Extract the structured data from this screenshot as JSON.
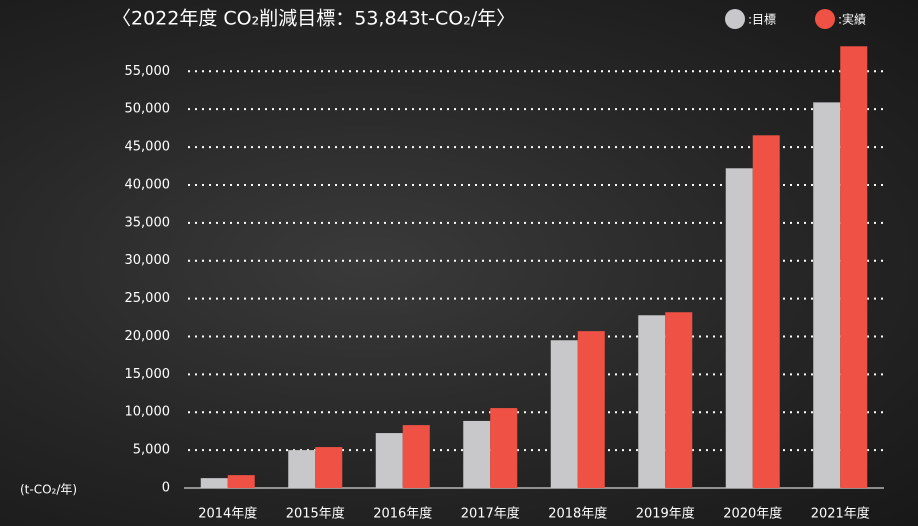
{
  "chart_data": {
    "type": "bar",
    "title": "〈2022年度 CO₂削減目標：53,843t-CO₂/年〉",
    "y_label": "(t-CO₂/年)",
    "categories": [
      "2014年度",
      "2015年度",
      "2016年度",
      "2017年度",
      "2018年度",
      "2019年度",
      "2020年度",
      "2021年度"
    ],
    "series": [
      {
        "name": ":目標",
        "color": "#c8c8ca",
        "values": [
          1300,
          5000,
          7250,
          8850,
          19500,
          22800,
          42200,
          50900
        ]
      },
      {
        "name": ":実績",
        "color": "#ef5245",
        "values": [
          1700,
          5400,
          8300,
          10550,
          20700,
          23200,
          46550,
          58300
        ]
      }
    ],
    "ylim": [
      0,
      59000
    ],
    "yticks": [
      0,
      {
        "value": 5000,
        "label": "5,000"
      },
      {
        "value": 10000,
        "label": "10,000"
      },
      {
        "value": 15000,
        "label": "15,000"
      },
      {
        "value": 20000,
        "label": "20,000"
      },
      {
        "value": 25000,
        "label": "25,000"
      },
      {
        "value": 30000,
        "label": "30,000"
      },
      {
        "value": 35000,
        "label": "35,000"
      },
      {
        "value": 40000,
        "label": "40,000"
      },
      {
        "value": 45000,
        "label": "45,000"
      },
      {
        "value": 50000,
        "label": "50,000"
      },
      {
        "value": 55000,
        "label": "55,000"
      }
    ],
    "grid": true
  }
}
